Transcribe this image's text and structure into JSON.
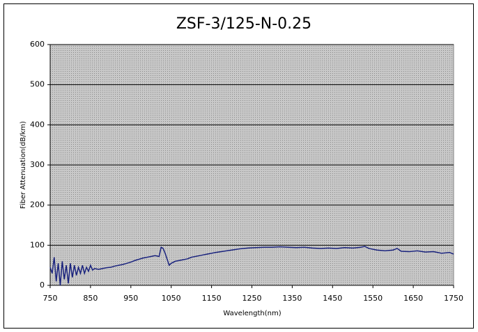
{
  "chart_data": {
    "type": "line",
    "title": "ZSF-3/125-N-0.25",
    "xlabel": "Wavelength(nm)",
    "ylabel": "Fiber Attenuation(dB/km)",
    "x": [
      750,
      755,
      760,
      765,
      770,
      775,
      780,
      785,
      790,
      795,
      800,
      805,
      810,
      815,
      820,
      825,
      830,
      835,
      840,
      845,
      850,
      855,
      860,
      870,
      880,
      890,
      900,
      910,
      920,
      930,
      940,
      950,
      960,
      970,
      980,
      990,
      1000,
      1010,
      1020,
      1025,
      1030,
      1035,
      1040,
      1045,
      1050,
      1060,
      1070,
      1080,
      1090,
      1100,
      1120,
      1140,
      1160,
      1180,
      1200,
      1220,
      1240,
      1260,
      1280,
      1300,
      1320,
      1340,
      1360,
      1380,
      1400,
      1420,
      1440,
      1460,
      1480,
      1500,
      1520,
      1530,
      1540,
      1550,
      1560,
      1580,
      1600,
      1610,
      1620,
      1640,
      1660,
      1680,
      1700,
      1720,
      1740,
      1750
    ],
    "values": [
      45,
      30,
      70,
      10,
      55,
      0,
      60,
      15,
      50,
      5,
      55,
      20,
      50,
      25,
      45,
      30,
      50,
      30,
      45,
      35,
      50,
      38,
      42,
      40,
      42,
      44,
      45,
      48,
      50,
      52,
      55,
      58,
      62,
      65,
      68,
      70,
      72,
      74,
      72,
      95,
      92,
      80,
      65,
      50,
      55,
      60,
      62,
      64,
      66,
      70,
      74,
      78,
      82,
      85,
      88,
      91,
      93,
      94,
      95,
      95,
      96,
      95,
      94,
      95,
      93,
      92,
      93,
      92,
      94,
      93,
      95,
      97,
      92,
      90,
      88,
      86,
      88,
      92,
      85,
      84,
      86,
      83,
      84,
      80,
      82,
      78
    ],
    "color": "#1a237e",
    "xlim": [
      750,
      1750
    ],
    "xticks": [
      750,
      850,
      950,
      1050,
      1150,
      1250,
      1350,
      1450,
      1550,
      1650,
      1750
    ],
    "ylim": [
      0,
      600
    ],
    "yticks": [
      0,
      100,
      200,
      300,
      400,
      500,
      600
    ],
    "grid": true
  }
}
